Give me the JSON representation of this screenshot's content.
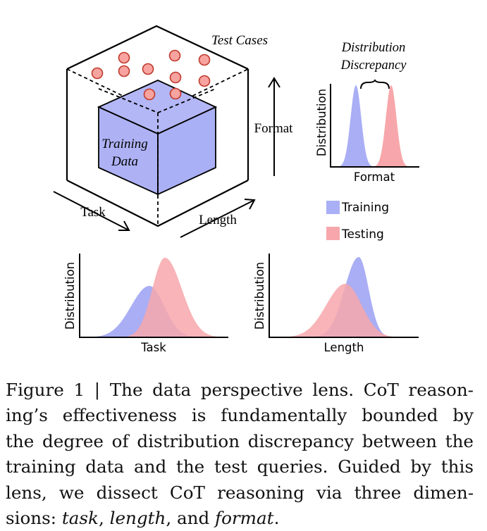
{
  "figure": {
    "cube": {
      "test_cases_label": "Test Cases",
      "training_data_label_1": "Training",
      "training_data_label_2": "Data",
      "format_axis": "Format",
      "task_axis": "Task",
      "length_axis": "Length"
    },
    "top_right_chart": {
      "title_1": "Distribution",
      "title_2": "Discrepancy",
      "ylabel": "Distribution",
      "xlabel": "Format"
    },
    "legend": {
      "training": "Training",
      "testing": "Testing"
    },
    "bottom_left_chart": {
      "ylabel": "Distribution",
      "xlabel": "Task"
    },
    "bottom_right_chart": {
      "ylabel": "Distribution",
      "xlabel": "Length"
    },
    "colors": {
      "training": "#aab0f5",
      "testing": "#f7a7ab",
      "test_case_fill": "#f7a3a0",
      "test_case_stroke": "#c0392b"
    }
  },
  "caption": {
    "line1": "Figure 1 | The data perspective lens. CoT reason-",
    "line2": "ing’s effectiveness is fundamentally bounded by",
    "line3": "the degree of distribution discrepancy between the",
    "line4": "training data and the test queries. Guided by this",
    "line5": "lens, we dissect CoT reasoning via three dimen-",
    "line6_prefix": "sions: ",
    "line6_task": "task",
    "line6_sep1": ", ",
    "line6_length": "length",
    "line6_sep2": ", and ",
    "line6_format": "format",
    "line6_end": "."
  }
}
